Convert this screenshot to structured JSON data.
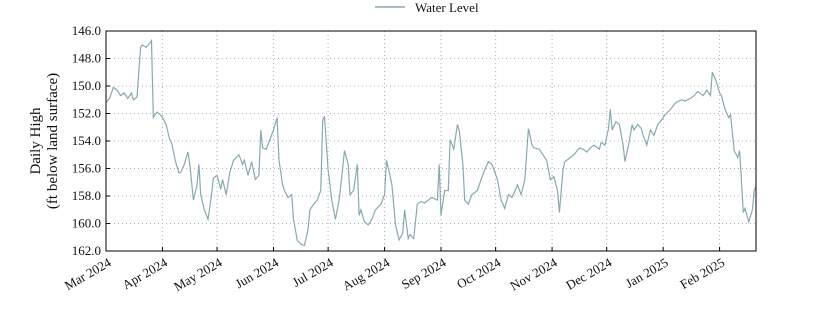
{
  "chart_data": {
    "type": "line",
    "ylabel": [
      "Daily High",
      "(ft below land surface)"
    ],
    "y_inverted": true,
    "ylim": [
      146,
      162
    ],
    "yticks": [
      {
        "value": 146,
        "label": "146.0"
      },
      {
        "value": 148,
        "label": "148.0"
      },
      {
        "value": 150,
        "label": "150.0"
      },
      {
        "value": 152,
        "label": "152.0"
      },
      {
        "value": 154,
        "label": "154.0"
      },
      {
        "value": 156,
        "label": "156.0"
      },
      {
        "value": 158,
        "label": "158.0"
      },
      {
        "value": 160,
        "label": "160.0"
      },
      {
        "value": 162,
        "label": "162.0"
      }
    ],
    "xlim": [
      0,
      357
    ],
    "xticks": [
      {
        "value": 0,
        "label": "Mar 2024"
      },
      {
        "value": 31,
        "label": "Apr 2024"
      },
      {
        "value": 61,
        "label": "May 2024"
      },
      {
        "value": 92,
        "label": "Jun 2024"
      },
      {
        "value": 122,
        "label": "Jul 2024"
      },
      {
        "value": 153,
        "label": "Aug 2024"
      },
      {
        "value": 184,
        "label": "Sep 2024"
      },
      {
        "value": 214,
        "label": "Oct 2024"
      },
      {
        "value": 245,
        "label": "Nov 2024"
      },
      {
        "value": 275,
        "label": "Dec 2024"
      },
      {
        "value": 306,
        "label": "Jan 2025"
      },
      {
        "value": 337,
        "label": "Feb 2025"
      }
    ],
    "grid": true,
    "legend": "top",
    "series": [
      {
        "name": "Water Level",
        "color": "#86aab2",
        "x": [
          0,
          2,
          4,
          6,
          8,
          10,
          12,
          14,
          15,
          17,
          19,
          20,
          22,
          24,
          25,
          26,
          28,
          30,
          31,
          33,
          35,
          36,
          38,
          40,
          41,
          43,
          45,
          46,
          48,
          50,
          51,
          52,
          54,
          56,
          58,
          59,
          61,
          63,
          64,
          66,
          68,
          70,
          73,
          75,
          76,
          78,
          80,
          82,
          84,
          85,
          86,
          88,
          90,
          92,
          94,
          95,
          97,
          98,
          100,
          102,
          103,
          105,
          107,
          109,
          111,
          112,
          114,
          116,
          118,
          119,
          120,
          122,
          124,
          126,
          128,
          129,
          131,
          133,
          134,
          136,
          138,
          139,
          140,
          142,
          144,
          146,
          148,
          151,
          153,
          154,
          156,
          157,
          159,
          161,
          163,
          164,
          166,
          167,
          169,
          171,
          173,
          175,
          177,
          179,
          182,
          183,
          184,
          186,
          188,
          189,
          191,
          193,
          194,
          196,
          197,
          199,
          201,
          204,
          206,
          208,
          210,
          212,
          215,
          217,
          219,
          221,
          223,
          226,
          228,
          230,
          232,
          234,
          235,
          238,
          240,
          242,
          244,
          246,
          248,
          249,
          251,
          252,
          255,
          257,
          260,
          262,
          264,
          266,
          268,
          271,
          272,
          274,
          276,
          277,
          278,
          280,
          282,
          284,
          285,
          287,
          289,
          290,
          292,
          294,
          295,
          297,
          299,
          301,
          303,
          305,
          307,
          310,
          313,
          316,
          318,
          321,
          323,
          325,
          328,
          330,
          332,
          333,
          335,
          337,
          338,
          340,
          342,
          343,
          345,
          347,
          348,
          350,
          351,
          353,
          355,
          356,
          357
        ],
        "values": [
          151.2,
          150.9,
          150.1,
          150.3,
          150.7,
          150.5,
          150.9,
          150.5,
          151.0,
          150.8,
          147.2,
          147.0,
          147.2,
          146.9,
          146.7,
          152.3,
          151.9,
          152.1,
          152.3,
          152.8,
          153.9,
          154.1,
          155.4,
          156.3,
          156.3,
          155.7,
          154.8,
          155.7,
          158.3,
          157.2,
          155.7,
          157.9,
          159.0,
          159.7,
          157.9,
          156.7,
          156.5,
          157.5,
          156.8,
          157.9,
          156.3,
          155.4,
          155.0,
          155.7,
          155.4,
          156.5,
          155.5,
          156.8,
          156.5,
          153.2,
          154.5,
          154.6,
          153.9,
          153.2,
          152.3,
          155.4,
          157.2,
          157.6,
          158.1,
          157.9,
          159.7,
          161.2,
          161.5,
          161.6,
          160.4,
          159.0,
          158.6,
          158.3,
          157.6,
          152.5,
          152.2,
          156.1,
          158.3,
          159.7,
          158.3,
          157.2,
          154.7,
          155.7,
          157.9,
          157.6,
          155.7,
          159.4,
          159.0,
          159.9,
          160.1,
          159.7,
          159.0,
          158.6,
          157.9,
          155.4,
          156.5,
          157.2,
          160.1,
          161.2,
          160.7,
          159.0,
          161.1,
          160.8,
          161.1,
          158.6,
          158.4,
          158.5,
          158.3,
          158.1,
          158.3,
          155.7,
          159.4,
          157.6,
          157.6,
          153.9,
          154.6,
          152.8,
          153.2,
          155.7,
          158.3,
          158.6,
          157.9,
          157.6,
          156.8,
          156.1,
          155.5,
          155.7,
          156.8,
          158.3,
          158.9,
          157.9,
          158.1,
          157.2,
          157.9,
          156.8,
          153.1,
          154.3,
          154.5,
          154.6,
          155.0,
          155.4,
          156.8,
          156.6,
          157.6,
          159.2,
          156.1,
          155.5,
          155.2,
          155.0,
          154.5,
          154.6,
          154.8,
          154.5,
          154.3,
          154.6,
          154.1,
          154.3,
          153.1,
          151.7,
          153.2,
          152.6,
          152.8,
          154.3,
          155.5,
          154.3,
          152.8,
          153.2,
          152.8,
          153.1,
          153.6,
          154.3,
          153.2,
          153.6,
          152.8,
          152.5,
          152.1,
          151.7,
          151.2,
          151.0,
          151.1,
          150.9,
          150.7,
          150.4,
          150.7,
          150.3,
          150.7,
          149.0,
          149.6,
          150.5,
          150.7,
          151.7,
          152.3,
          152.1,
          154.7,
          155.2,
          154.7,
          159.2,
          158.9,
          159.9,
          159.0,
          157.6,
          157.3
        ]
      }
    ]
  }
}
